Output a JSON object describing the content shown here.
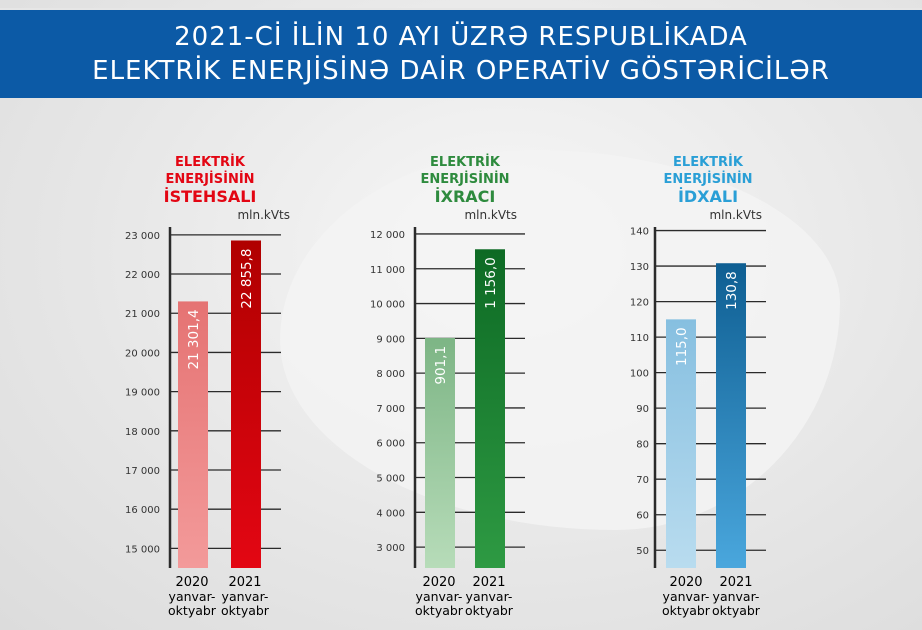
{
  "header": {
    "line1": "2021-Cİ İLİN 10 AYI ÜZRƏ RESPUBLİKADA",
    "line2": "ELEKTRİK ENERJİSİNƏ DAİR OPERATİV GÖSTƏRİCİLƏR",
    "bg_color": "#0c5aa6"
  },
  "chart_data": [
    {
      "type": "bar",
      "title_lines": [
        "ELEKTRİK",
        "ENERJİSİNİN"
      ],
      "title_big": "İSTEHSALI",
      "title_color": "#e30613",
      "unit": "mln.kVts",
      "ylim": [
        14500,
        23200
      ],
      "yticks": [
        15000,
        16000,
        17000,
        18000,
        19000,
        20000,
        21000,
        22000,
        23000
      ],
      "ytick_labels": [
        "15 000",
        "16 000",
        "17 000",
        "18 000",
        "19 000",
        "20 000",
        "21 000",
        "22 000",
        "23 000"
      ],
      "categories": [
        {
          "year": "2020",
          "period1": "yanvar-",
          "period2": "oktyabr"
        },
        {
          "year": "2021",
          "period1": "yanvar-",
          "period2": "oktyabr"
        }
      ],
      "values": [
        21301.4,
        22855.8
      ],
      "value_labels": [
        "21 301,4",
        "22 855,8"
      ],
      "colors": [
        [
          "#f39a9a",
          "#e57373"
        ],
        [
          "#e30613",
          "#b00000"
        ]
      ],
      "cat_color": "#e57373"
    },
    {
      "type": "bar",
      "title_lines": [
        "ELEKTRİK",
        "ENERJİSİNİN"
      ],
      "title_big": "İXRACI",
      "title_color": "#2e8b3e",
      "unit": "mln.kVts",
      "ylim": [
        2400,
        12200
      ],
      "yticks": [
        3000,
        4000,
        5000,
        6000,
        7000,
        8000,
        9000,
        10000,
        11000,
        12000
      ],
      "ytick_labels": [
        "3 000",
        "4 000",
        "5 000",
        "6 000",
        "7 000",
        "8 000",
        "9 000",
        "10 000",
        "11 000",
        "12 000"
      ],
      "categories": [
        {
          "year": "2020",
          "period1": "yanvar-",
          "period2": "oktyabr"
        },
        {
          "year": "2021",
          "period1": "yanvar-",
          "period2": "oktyabr"
        }
      ],
      "values": [
        901.1,
        1156.0
      ],
      "value_labels": [
        "901,1",
        "1 156,0"
      ],
      "colors": [
        [
          "#b7dcb9",
          "#7db585"
        ],
        [
          "#2e9a43",
          "#0d6a24"
        ]
      ],
      "cat_color": "#5aa469"
    },
    {
      "type": "bar",
      "title_lines": [
        "ELEKTRİK",
        "ENERJİSİNİN"
      ],
      "title_big": "İDXALI",
      "title_color": "#2a9fd6",
      "unit": "mln.kVts",
      "ylim": [
        45,
        141
      ],
      "yticks": [
        50,
        60,
        70,
        80,
        90,
        100,
        110,
        120,
        130,
        140
      ],
      "ytick_labels": [
        "50",
        "60",
        "70",
        "80",
        "90",
        "100",
        "110",
        "120",
        "130",
        "140"
      ],
      "categories": [
        {
          "year": "2020",
          "period1": "yanvar-",
          "period2": "oktyabr"
        },
        {
          "year": "2021",
          "period1": "yanvar-",
          "period2": "oktyabr"
        }
      ],
      "values": [
        115.0,
        130.8
      ],
      "value_labels": [
        "115,0",
        "130,8"
      ],
      "colors": [
        [
          "#b9dcef",
          "#86bfe0"
        ],
        [
          "#4aa7dd",
          "#0e5e92"
        ]
      ],
      "cat_color": "#4aa7dd"
    }
  ]
}
